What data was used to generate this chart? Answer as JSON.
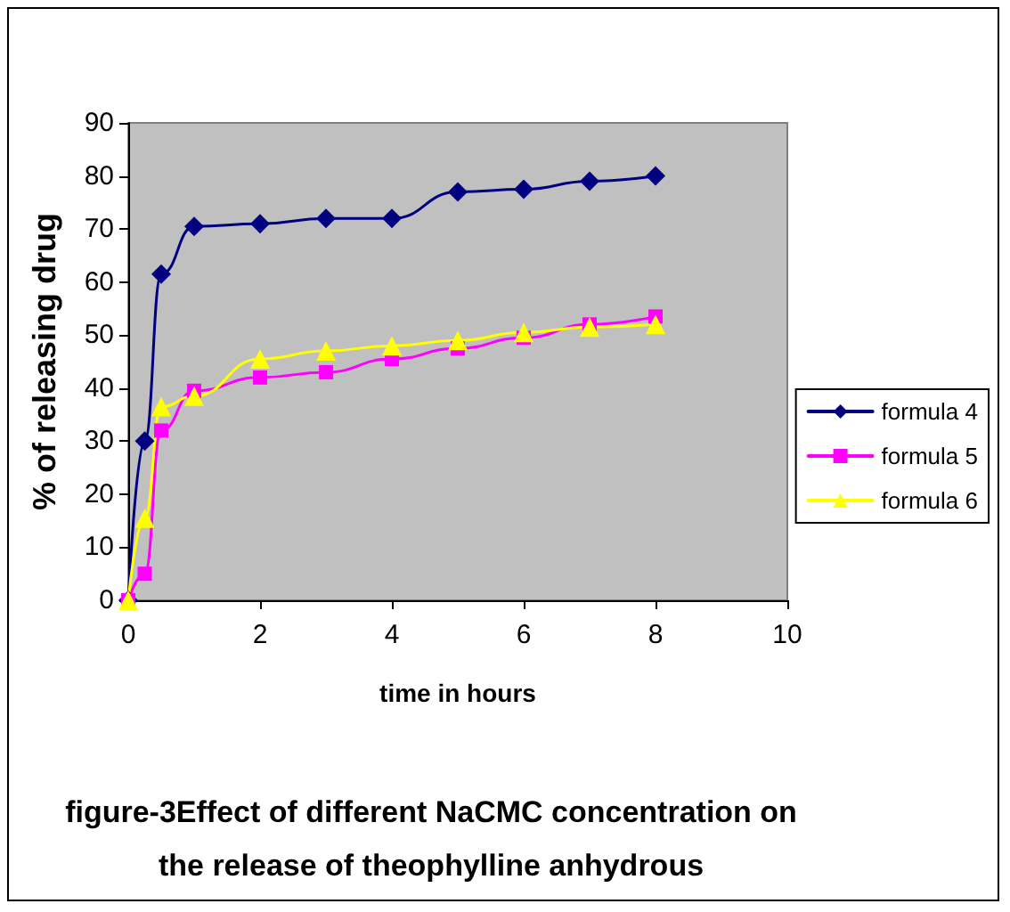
{
  "chart_data": {
    "type": "line",
    "title": "figure-3Effect of different NaCMC concentration on\nthe release of theophylline anhydrous",
    "xlabel": "time in hours",
    "ylabel": "% of releasing drug",
    "x": [
      0,
      0.25,
      0.5,
      1,
      2,
      3,
      4,
      5,
      6,
      7,
      8
    ],
    "series": [
      {
        "name": "formula 4",
        "color": "#000080",
        "marker": "diamond",
        "values": [
          0,
          30,
          61.5,
          70.5,
          71,
          72,
          72,
          77,
          77.5,
          79,
          80
        ]
      },
      {
        "name": "formula 5",
        "color": "#ff00ff",
        "marker": "square",
        "values": [
          0,
          5,
          32,
          39.5,
          42,
          43,
          45.5,
          47.5,
          49.5,
          52,
          53.5
        ]
      },
      {
        "name": "formula 6",
        "color": "#ffff00",
        "marker": "triangle",
        "values": [
          0,
          15.5,
          36.5,
          38.5,
          45.5,
          47,
          48,
          49,
          50.5,
          51.5,
          52
        ]
      }
    ],
    "xlim": [
      0,
      10
    ],
    "xticks": [
      0,
      2,
      4,
      6,
      8,
      10
    ],
    "ylim": [
      0,
      90
    ],
    "yticks": [
      0,
      10,
      20,
      30,
      40,
      50,
      60,
      70,
      80,
      90
    ],
    "grid": false,
    "legend": "right",
    "line_style": "solid"
  }
}
